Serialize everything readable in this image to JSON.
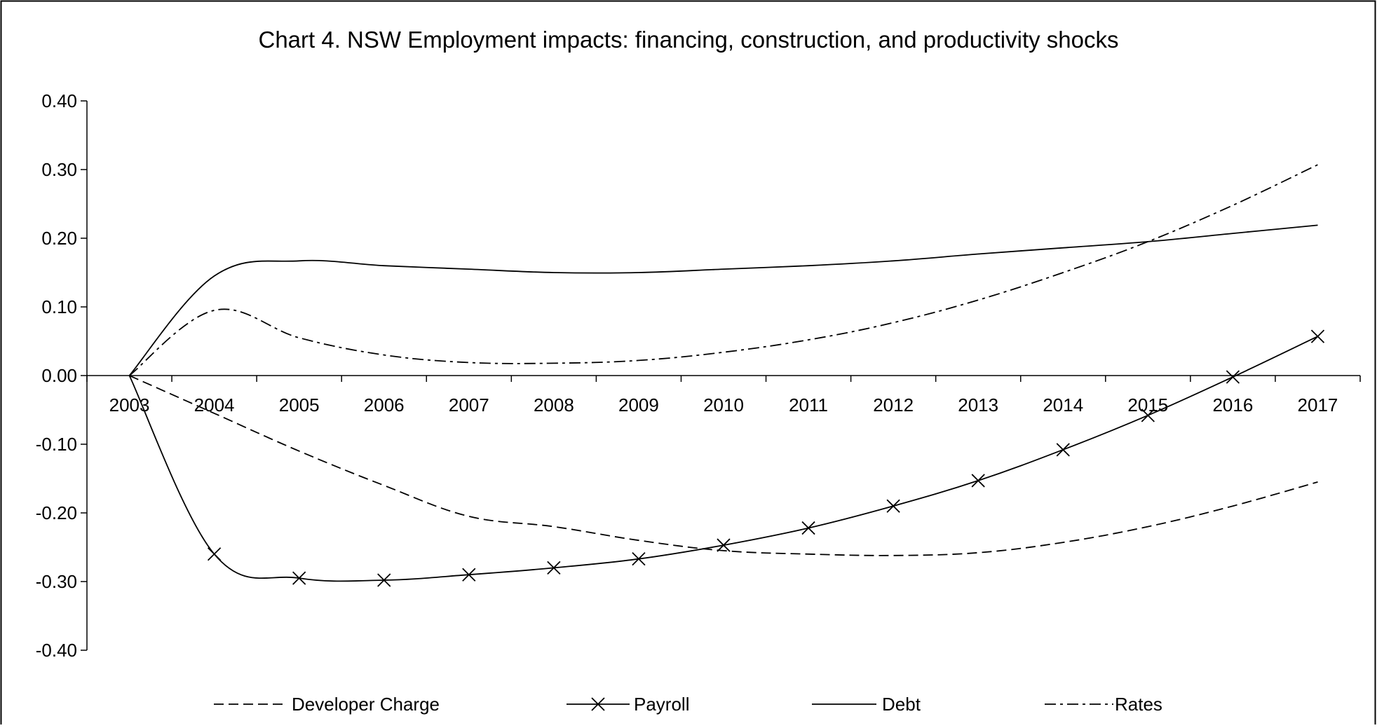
{
  "chart_data": {
    "type": "line",
    "title": "Chart 4. NSW Employment impacts: financing, construction, and productivity shocks",
    "xlabel": "",
    "ylabel": "",
    "x": [
      "2003",
      "2004",
      "2005",
      "2006",
      "2007",
      "2008",
      "2009",
      "2010",
      "2011",
      "2012",
      "2013",
      "2014",
      "2015",
      "2016",
      "2017"
    ],
    "ylim": [
      -0.4,
      0.4
    ],
    "yticks": [
      "0.40",
      "0.30",
      "0.20",
      "0.10",
      "0.00",
      "-0.10",
      "-0.20",
      "-0.30",
      "-0.40"
    ],
    "grid": false,
    "legend_position": "bottom",
    "series": [
      {
        "name": "Developer Charge",
        "style": "dashed",
        "color": "#000000",
        "values": [
          0.0,
          -0.055,
          -0.11,
          -0.16,
          -0.205,
          -0.22,
          -0.24,
          -0.255,
          -0.26,
          -0.262,
          -0.258,
          -0.243,
          -0.22,
          -0.19,
          -0.155
        ]
      },
      {
        "name": "Payroll",
        "style": "solid-x-markers",
        "color": "#000000",
        "values": [
          0.0,
          -0.26,
          -0.295,
          -0.298,
          -0.29,
          -0.28,
          -0.267,
          -0.247,
          -0.222,
          -0.19,
          -0.153,
          -0.108,
          -0.058,
          -0.002,
          0.057
        ]
      },
      {
        "name": "Debt",
        "style": "solid",
        "color": "#000000",
        "values": [
          0.0,
          0.145,
          0.167,
          0.16,
          0.155,
          0.15,
          0.15,
          0.155,
          0.16,
          0.167,
          0.177,
          0.186,
          0.195,
          0.207,
          0.219
        ]
      },
      {
        "name": "Rates",
        "style": "dash-dot",
        "color": "#000000",
        "values": [
          0.0,
          0.095,
          0.055,
          0.03,
          0.019,
          0.018,
          0.022,
          0.034,
          0.052,
          0.077,
          0.11,
          0.15,
          0.195,
          0.248,
          0.307
        ]
      }
    ]
  }
}
